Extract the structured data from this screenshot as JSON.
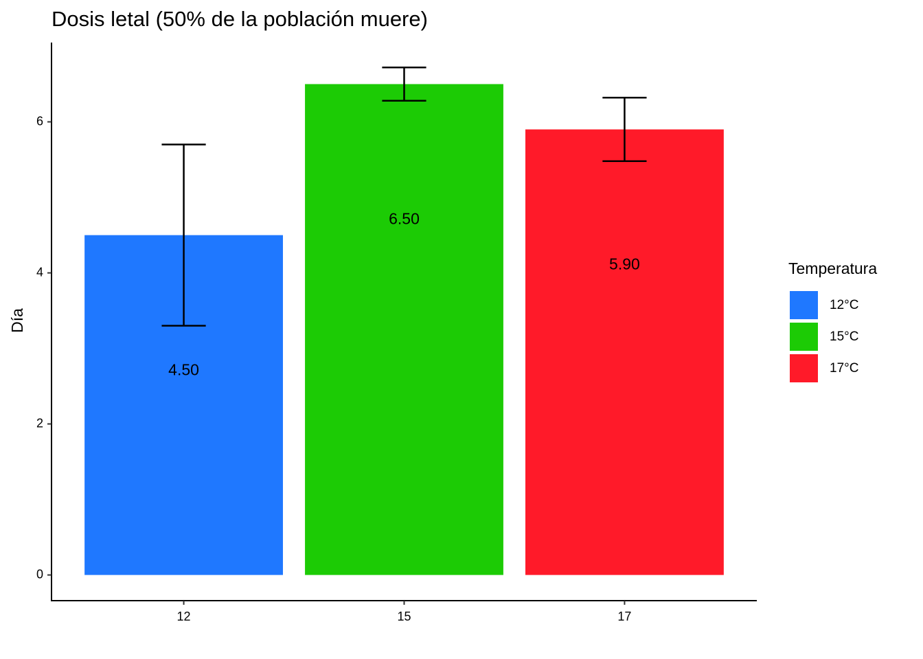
{
  "chart_data": {
    "type": "bar",
    "title": "Dosis letal (50% de la población muere)",
    "y_label": "Día",
    "categories": [
      "12",
      "15",
      "17"
    ],
    "values": [
      4.5,
      6.5,
      5.9
    ],
    "value_labels": [
      "4.50",
      "6.50",
      "5.90"
    ],
    "errors": [
      1.2,
      0.22,
      0.42
    ],
    "colors": [
      "#1f78ff",
      "#1ccb05",
      "#ff1a29"
    ],
    "legend_title": "Temperatura",
    "legend_labels": [
      "12°C",
      "15°C",
      "17°C"
    ],
    "ylim": [
      -0.34,
      7.05
    ],
    "yticks": [
      0,
      2,
      4,
      6
    ],
    "grid": false
  }
}
